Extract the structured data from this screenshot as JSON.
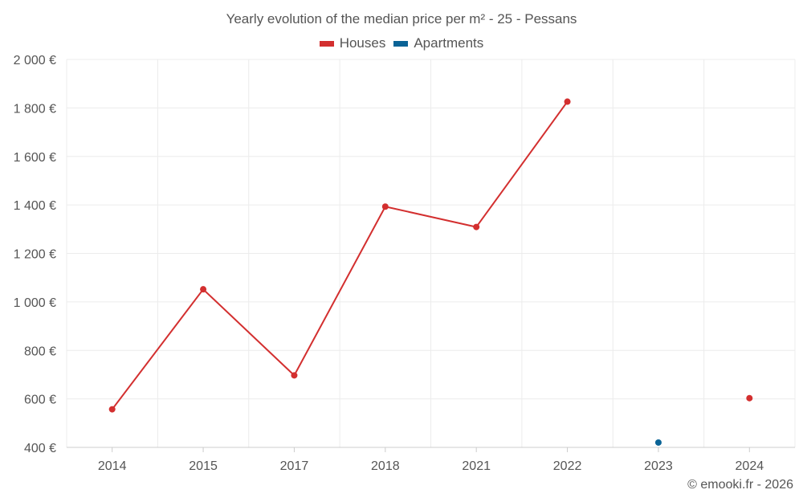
{
  "chart_data": {
    "type": "line",
    "title": "Yearly evolution of the median price per m² - 25 - Pessans",
    "categories": [
      "2014",
      "2015",
      "2017",
      "2018",
      "2021",
      "2022",
      "2023",
      "2024"
    ],
    "ylim": [
      400,
      2000
    ],
    "yticks": [
      400,
      600,
      800,
      1000,
      1200,
      1400,
      1600,
      1800,
      2000
    ],
    "ytick_labels": [
      "400 €",
      "600 €",
      "800 €",
      "1 000 €",
      "1 200 €",
      "1 400 €",
      "1 600 €",
      "1 800 €",
      "2 000 €"
    ],
    "xlabel": "",
    "ylabel": "",
    "grid": true,
    "legend_position": "top-center",
    "series": [
      {
        "name": "Houses",
        "color": "#d32f2f",
        "values": [
          557,
          1052,
          697,
          1393,
          1309,
          1826,
          null,
          603
        ]
      },
      {
        "name": "Apartments",
        "color": "#0a6396",
        "values": [
          null,
          null,
          null,
          null,
          null,
          null,
          420,
          null
        ]
      }
    ]
  },
  "footer": {
    "credit": "© emooki.fr - 2026"
  }
}
